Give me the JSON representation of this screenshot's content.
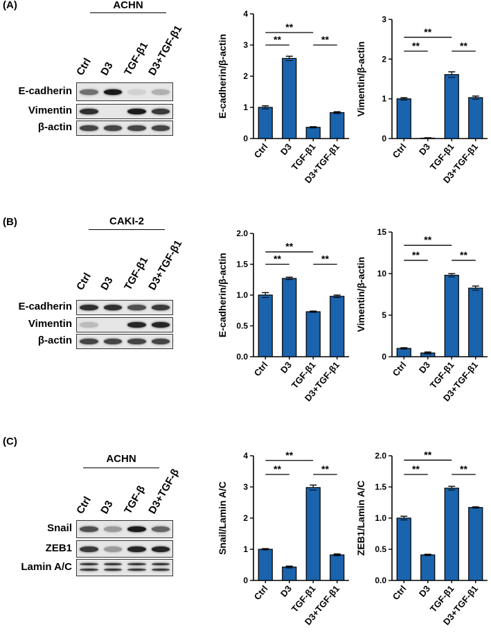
{
  "panels": [
    {
      "letter": "(A)",
      "cell_line": "ACHN",
      "lanes": [
        "Ctrl",
        "D3",
        "TGF-β1",
        "D3+TGF-β1"
      ],
      "bands": [
        {
          "label": "E-cadherin",
          "intensity": [
            0.55,
            0.95,
            0.1,
            0.25
          ]
        },
        {
          "label": "Vimentin",
          "intensity": [
            0.85,
            0.0,
            0.95,
            0.8
          ]
        },
        {
          "label": "β-actin",
          "intensity": [
            0.75,
            0.75,
            0.75,
            0.75
          ]
        }
      ]
    },
    {
      "letter": "(B)",
      "cell_line": "CAKI-2",
      "lanes": [
        "Ctrl",
        "D3",
        "TGF-β1",
        "D3+TGF-β1"
      ],
      "bands": [
        {
          "label": "E-cadherin",
          "intensity": [
            0.85,
            0.85,
            0.7,
            0.8
          ]
        },
        {
          "label": "Vimentin",
          "intensity": [
            0.2,
            0.0,
            0.9,
            0.9
          ]
        },
        {
          "label": "β-actin",
          "intensity": [
            0.75,
            0.75,
            0.75,
            0.75
          ]
        }
      ]
    },
    {
      "letter": "(C)",
      "cell_line": "ACHN",
      "lanes": [
        "Ctrl",
        "D3",
        "TGF-β",
        "D3+TGF-β"
      ],
      "bands": [
        {
          "label": "Snail",
          "intensity": [
            0.7,
            0.35,
            0.95,
            0.6
          ]
        },
        {
          "label": "ZEB1",
          "intensity": [
            0.8,
            0.35,
            0.9,
            0.9
          ]
        },
        {
          "label": "Lamin A/C",
          "intensity": [
            0.8,
            0.8,
            0.8,
            0.8
          ],
          "double": true
        }
      ]
    }
  ],
  "chart_data": [
    {
      "type": "bar",
      "categories": [
        "Ctrl",
        "D3",
        "TGF-β1",
        "D3+TGF-β1"
      ],
      "values": [
        1.0,
        2.57,
        0.36,
        0.83
      ],
      "errors": [
        0.05,
        0.07,
        0.02,
        0.03
      ],
      "ylabel": "E-cadherin/β-actin",
      "ylim": [
        0,
        4
      ],
      "yticks": [
        0,
        1,
        2,
        3,
        4
      ],
      "bar_color": "#1a63ad",
      "significance": [
        {
          "from": 0,
          "to": 1,
          "label": "**",
          "level": 3.0
        },
        {
          "from": 0,
          "to": 2,
          "label": "**",
          "level": 3.4
        },
        {
          "from": 2,
          "to": 3,
          "label": "**",
          "level": 3.0
        }
      ]
    },
    {
      "type": "bar",
      "categories": [
        "Ctrl",
        "D3",
        "TGF-β1",
        "D3+TGF-β1"
      ],
      "values": [
        1.0,
        0.01,
        1.61,
        1.03
      ],
      "errors": [
        0.03,
        0.01,
        0.07,
        0.04
      ],
      "ylabel": "Vimentin/β-actin",
      "ylim": [
        0,
        3
      ],
      "yticks": [
        0,
        1,
        2,
        3
      ],
      "bar_color": "#1a63ad",
      "significance": [
        {
          "from": 0,
          "to": 1,
          "label": "**",
          "level": 2.2
        },
        {
          "from": 0,
          "to": 2,
          "label": "**",
          "level": 2.55
        },
        {
          "from": 2,
          "to": 3,
          "label": "**",
          "level": 2.2
        }
      ]
    },
    {
      "type": "bar",
      "categories": [
        "Ctrl",
        "D3",
        "TGF-β1",
        "D3+TGF-β1"
      ],
      "values": [
        1.0,
        1.27,
        0.73,
        0.98
      ],
      "errors": [
        0.04,
        0.02,
        0.01,
        0.02
      ],
      "ylabel": "E-cadherin/β-actin",
      "ylim": [
        0,
        2.0
      ],
      "yticks": [
        0,
        0.5,
        1.0,
        1.5,
        2.0
      ],
      "bar_color": "#1a63ad",
      "significance": [
        {
          "from": 0,
          "to": 1,
          "label": "**",
          "level": 1.5
        },
        {
          "from": 0,
          "to": 2,
          "label": "**",
          "level": 1.7
        },
        {
          "from": 2,
          "to": 3,
          "label": "**",
          "level": 1.5
        }
      ]
    },
    {
      "type": "bar",
      "categories": [
        "Ctrl",
        "D3",
        "TGF-β1",
        "D3+TGF-β1"
      ],
      "values": [
        1.0,
        0.45,
        9.8,
        8.25
      ],
      "errors": [
        0.08,
        0.12,
        0.2,
        0.25
      ],
      "ylabel": "Vimentin/β-actin",
      "ylim": [
        0,
        15
      ],
      "yticks": [
        0,
        5,
        10,
        15
      ],
      "bar_color": "#1a63ad",
      "significance": [
        {
          "from": 0,
          "to": 1,
          "label": "**",
          "level": 11.6
        },
        {
          "from": 0,
          "to": 2,
          "label": "**",
          "level": 13.4
        },
        {
          "from": 2,
          "to": 3,
          "label": "**",
          "level": 11.6
        }
      ]
    },
    {
      "type": "bar",
      "categories": [
        "Ctrl",
        "D3",
        "TGF-β1",
        "D3+TGF-β1"
      ],
      "values": [
        1.0,
        0.43,
        2.98,
        0.82
      ],
      "errors": [
        0.02,
        0.03,
        0.08,
        0.03
      ],
      "ylabel": "Snail/Lamin A/C",
      "ylim": [
        0,
        4
      ],
      "yticks": [
        0,
        1,
        2,
        3,
        4
      ],
      "bar_color": "#1a63ad",
      "significance": [
        {
          "from": 0,
          "to": 1,
          "label": "**",
          "level": 3.4
        },
        {
          "from": 0,
          "to": 2,
          "label": "**",
          "level": 3.85
        },
        {
          "from": 2,
          "to": 3,
          "label": "**",
          "level": 3.4
        }
      ]
    },
    {
      "type": "bar",
      "categories": [
        "Ctrl",
        "D3",
        "TGF-β1",
        "D3+TGF-β1"
      ],
      "values": [
        1.0,
        0.41,
        1.48,
        1.17
      ],
      "errors": [
        0.03,
        0.01,
        0.03,
        0.01
      ],
      "ylabel": "ZEB1/Lamin A/C",
      "ylim": [
        0,
        2.0
      ],
      "yticks": [
        0,
        0.5,
        1.0,
        1.5,
        2.0
      ],
      "bar_color": "#1a63ad",
      "significance": [
        {
          "from": 0,
          "to": 1,
          "label": "**",
          "level": 1.7
        },
        {
          "from": 0,
          "to": 2,
          "label": "**",
          "level": 1.93
        },
        {
          "from": 2,
          "to": 3,
          "label": "**",
          "level": 1.7
        }
      ]
    }
  ]
}
